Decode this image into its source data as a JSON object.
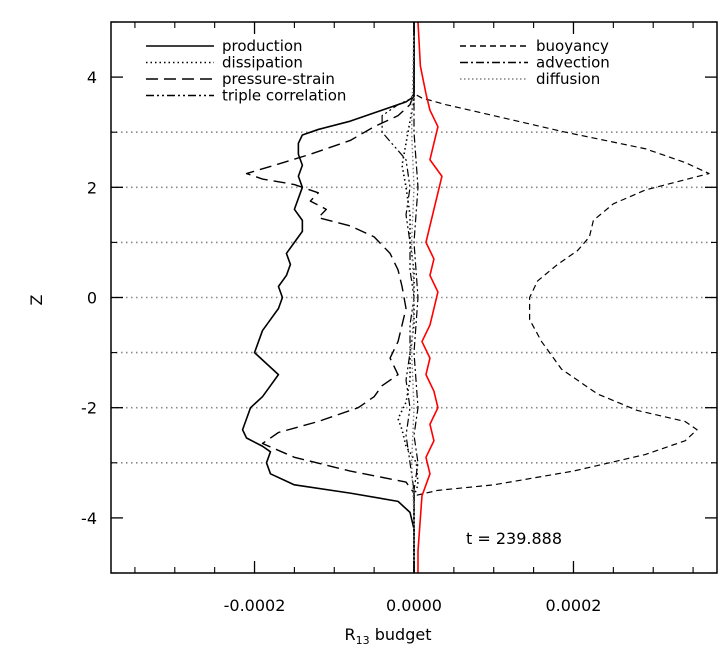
{
  "chart_data": {
    "type": "line",
    "annotation": "t = 239.888",
    "xlabel_main": "R",
    "xlabel_sub": "13",
    "xlabel_rest": " budget",
    "ylabel": "Z",
    "xlim": [
      -0.00038,
      0.00038
    ],
    "ylim": [
      -5,
      5
    ],
    "x_ticks": [
      {
        "value": -0.0002,
        "label": "-0.0002"
      },
      {
        "value": 0.0,
        "label": "0.0000"
      },
      {
        "value": 0.0002,
        "label": "0.0002"
      }
    ],
    "y_ticks": [
      {
        "value": -4,
        "label": "-4"
      },
      {
        "value": -2,
        "label": "-2"
      },
      {
        "value": 0,
        "label": "0"
      },
      {
        "value": 2,
        "label": "2"
      },
      {
        "value": 4,
        "label": "4"
      }
    ],
    "reference_lines_z": [
      -3,
      -2,
      -1,
      0,
      1,
      2,
      3
    ],
    "legend_left": [
      {
        "label": "production",
        "dash": "solid"
      },
      {
        "label": "dissipation",
        "dash": "dotted"
      },
      {
        "label": "pressure-strain",
        "dash": "longdash"
      },
      {
        "label": "triple correlation",
        "dash": "dashdotdot"
      }
    ],
    "legend_right": [
      {
        "label": "buoyancy",
        "dash": "dashed"
      },
      {
        "label": "advection",
        "dash": "dashdot"
      },
      {
        "label": "diffusion",
        "dash": "dotted-gray"
      }
    ],
    "series": [
      {
        "name": "production",
        "dash": "solid",
        "color": "#000000",
        "points": [
          [
            0.0,
            -5.0
          ],
          [
            0.0,
            -4.2
          ],
          [
            -5e-06,
            -3.9
          ],
          [
            -2e-05,
            -3.7
          ],
          [
            -8e-05,
            -3.55
          ],
          [
            -0.00015,
            -3.4
          ],
          [
            -0.00018,
            -3.2
          ],
          [
            -0.000185,
            -3.0
          ],
          [
            -0.00018,
            -2.8
          ],
          [
            -0.00019,
            -2.7
          ],
          [
            -0.00021,
            -2.55
          ],
          [
            -0.000215,
            -2.4
          ],
          [
            -0.00021,
            -2.2
          ],
          [
            -0.000205,
            -2.0
          ],
          [
            -0.00019,
            -1.8
          ],
          [
            -0.00018,
            -1.6
          ],
          [
            -0.00017,
            -1.4
          ],
          [
            -0.000185,
            -1.2
          ],
          [
            -0.0002,
            -1.0
          ],
          [
            -0.000195,
            -0.8
          ],
          [
            -0.00019,
            -0.6
          ],
          [
            -0.00018,
            -0.4
          ],
          [
            -0.00017,
            -0.2
          ],
          [
            -0.000165,
            0.0
          ],
          [
            -0.00017,
            0.2
          ],
          [
            -0.00016,
            0.4
          ],
          [
            -0.000155,
            0.6
          ],
          [
            -0.00016,
            0.8
          ],
          [
            -0.00015,
            1.0
          ],
          [
            -0.00014,
            1.2
          ],
          [
            -0.00014,
            1.4
          ],
          [
            -0.00015,
            1.6
          ],
          [
            -0.000145,
            1.8
          ],
          [
            -0.00014,
            2.0
          ],
          [
            -0.000145,
            2.2
          ],
          [
            -0.00014,
            2.4
          ],
          [
            -0.000145,
            2.6
          ],
          [
            -0.000145,
            2.8
          ],
          [
            -0.00014,
            2.95
          ],
          [
            -0.00012,
            3.05
          ],
          [
            -8e-05,
            3.2
          ],
          [
            -4e-05,
            3.4
          ],
          [
            -1e-05,
            3.55
          ],
          [
            0.0,
            3.65
          ],
          [
            0.0,
            5.0
          ]
        ]
      },
      {
        "name": "pressure-strain",
        "dash": "longdash",
        "color": "#000000",
        "points": [
          [
            0.0,
            -5.0
          ],
          [
            0.0,
            -4.0
          ],
          [
            0.0,
            -3.55
          ],
          [
            -1e-05,
            -3.35
          ],
          [
            -8e-05,
            -3.15
          ],
          [
            -0.00015,
            -2.9
          ],
          [
            -0.00019,
            -2.65
          ],
          [
            -0.00017,
            -2.45
          ],
          [
            -0.00012,
            -2.25
          ],
          [
            -7e-05,
            -2.0
          ],
          [
            -5e-05,
            -1.8
          ],
          [
            -4e-05,
            -1.6
          ],
          [
            -2e-05,
            -1.4
          ],
          [
            -3e-05,
            -1.1
          ],
          [
            -2e-05,
            -0.8
          ],
          [
            -1.5e-05,
            -0.5
          ],
          [
            -1e-05,
            -0.2
          ],
          [
            -1.5e-05,
            0.2
          ],
          [
            -2e-05,
            0.5
          ],
          [
            -3e-05,
            0.8
          ],
          [
            -5e-05,
            1.1
          ],
          [
            -8e-05,
            1.3
          ],
          [
            -0.00012,
            1.45
          ],
          [
            -0.00011,
            1.6
          ],
          [
            -0.00013,
            1.75
          ],
          [
            -0.00012,
            1.9
          ],
          [
            -0.00015,
            2.05
          ],
          [
            -0.00019,
            2.15
          ],
          [
            -0.00021,
            2.25
          ],
          [
            -0.000175,
            2.4
          ],
          [
            -0.00013,
            2.6
          ],
          [
            -8e-05,
            2.85
          ],
          [
            -5e-05,
            3.1
          ],
          [
            -2e-05,
            3.3
          ],
          [
            -5e-06,
            3.5
          ],
          [
            0.0,
            3.7
          ],
          [
            0.0,
            5.0
          ]
        ]
      },
      {
        "name": "triple correlation",
        "dash": "dashdotdot",
        "color": "#000000",
        "points": [
          [
            0.0,
            -5.0
          ],
          [
            0.0,
            -3.5
          ],
          [
            -5e-06,
            -3.0
          ],
          [
            -1e-05,
            -2.5
          ],
          [
            -5e-06,
            -2.0
          ],
          [
            -1e-05,
            -1.5
          ],
          [
            -5e-06,
            -1.0
          ],
          [
            -5e-06,
            -0.5
          ],
          [
            0.0,
            0.0
          ],
          [
            -5e-06,
            0.5
          ],
          [
            -5e-06,
            1.0
          ],
          [
            -1e-05,
            1.5
          ],
          [
            -5e-06,
            2.0
          ],
          [
            -1e-05,
            2.5
          ],
          [
            -4e-05,
            3.0
          ],
          [
            -4e-05,
            3.3
          ],
          [
            -2e-05,
            3.5
          ],
          [
            -5e-06,
            3.6
          ],
          [
            0.0,
            3.7
          ],
          [
            0.0,
            5.0
          ]
        ]
      },
      {
        "name": "dissipation",
        "dash": "dotted",
        "color": "#000000",
        "points": [
          [
            0.0,
            -5.0
          ],
          [
            0.0,
            -3.6
          ],
          [
            5e-06,
            -3.4
          ],
          [
            3e-06,
            -3.0
          ],
          [
            -1e-05,
            -2.7
          ],
          [
            -1.5e-05,
            -2.4
          ],
          [
            -2e-05,
            -2.2
          ],
          [
            -1e-05,
            -1.9
          ],
          [
            -5e-06,
            -1.5
          ],
          [
            -5e-06,
            -1.0
          ],
          [
            0.0,
            -0.5
          ],
          [
            0.0,
            0.0
          ],
          [
            0.0,
            0.5
          ],
          [
            -5e-06,
            1.0
          ],
          [
            -5e-06,
            1.5
          ],
          [
            -1e-05,
            2.0
          ],
          [
            -1.5e-05,
            2.4
          ],
          [
            -1e-05,
            2.8
          ],
          [
            -5e-06,
            3.2
          ],
          [
            0.0,
            3.6
          ],
          [
            0.0,
            5.0
          ]
        ]
      },
      {
        "name": "buoyancy",
        "dash": "dashed",
        "color": "#000000",
        "points": [
          [
            0.0,
            -5.0
          ],
          [
            0.0,
            -4.0
          ],
          [
            0.0,
            -3.6
          ],
          [
            3e-05,
            -3.5
          ],
          [
            0.0001,
            -3.4
          ],
          [
            0.0002,
            -3.15
          ],
          [
            0.00029,
            -2.85
          ],
          [
            0.00034,
            -2.6
          ],
          [
            0.000355,
            -2.4
          ],
          [
            0.00034,
            -2.25
          ],
          [
            0.00028,
            -2.05
          ],
          [
            0.00023,
            -1.75
          ],
          [
            0.000185,
            -1.3
          ],
          [
            0.00016,
            -0.8
          ],
          [
            0.000145,
            -0.4
          ],
          [
            0.000145,
            0.0
          ],
          [
            0.000155,
            0.3
          ],
          [
            0.00018,
            0.6
          ],
          [
            0.000205,
            0.85
          ],
          [
            0.00022,
            1.1
          ],
          [
            0.000225,
            1.4
          ],
          [
            0.00025,
            1.7
          ],
          [
            0.00029,
            1.95
          ],
          [
            0.00033,
            2.1
          ],
          [
            0.00037,
            2.25
          ],
          [
            0.00034,
            2.45
          ],
          [
            0.00029,
            2.7
          ],
          [
            0.00019,
            3.0
          ],
          [
            0.0001,
            3.3
          ],
          [
            4e-05,
            3.5
          ],
          [
            1e-05,
            3.62
          ],
          [
            0.0,
            3.7
          ],
          [
            0.0,
            5.0
          ]
        ]
      },
      {
        "name": "advection",
        "dash": "dashdot",
        "color": "#000000",
        "points": [
          [
            0.0,
            -5.0
          ],
          [
            0.0,
            -3.5
          ],
          [
            5e-06,
            -3.0
          ],
          [
            0.0,
            -2.5
          ],
          [
            5e-06,
            -2.0
          ],
          [
            0.0,
            -1.0
          ],
          [
            5e-06,
            0.0
          ],
          [
            0.0,
            1.0
          ],
          [
            5e-06,
            2.0
          ],
          [
            0.0,
            3.0
          ],
          [
            0.0,
            5.0
          ]
        ]
      },
      {
        "name": "diffusion",
        "dash": "dotted-gray",
        "color": "#808080",
        "points": [
          [
            0.0,
            -5.0
          ],
          [
            0.0,
            -4.0
          ],
          [
            -3e-06,
            -3.0
          ],
          [
            0.0,
            -2.0
          ],
          [
            -3e-06,
            -1.0
          ],
          [
            0.0,
            0.0
          ],
          [
            -3e-06,
            1.0
          ],
          [
            0.0,
            2.0
          ],
          [
            -3e-06,
            3.0
          ],
          [
            0.0,
            5.0
          ]
        ]
      },
      {
        "name": "sum",
        "dash": "solid",
        "color": "#ff0000",
        "points": [
          [
            5e-06,
            -5.0
          ],
          [
            5e-06,
            -4.6
          ],
          [
            8e-06,
            -4.0
          ],
          [
            1e-05,
            -3.6
          ],
          [
            2e-05,
            -3.2
          ],
          [
            1.5e-05,
            -2.9
          ],
          [
            2.5e-05,
            -2.6
          ],
          [
            2e-05,
            -2.3
          ],
          [
            3e-05,
            -2.0
          ],
          [
            2.5e-05,
            -1.7
          ],
          [
            1.5e-05,
            -1.4
          ],
          [
            2e-05,
            -1.1
          ],
          [
            1e-05,
            -0.8
          ],
          [
            2e-05,
            -0.5
          ],
          [
            2.5e-05,
            -0.2
          ],
          [
            3e-05,
            0.1
          ],
          [
            2e-05,
            0.4
          ],
          [
            2.5e-05,
            0.7
          ],
          [
            1.5e-05,
            1.0
          ],
          [
            2e-05,
            1.3
          ],
          [
            2.5e-05,
            1.6
          ],
          [
            3e-05,
            1.9
          ],
          [
            3.5e-05,
            2.2
          ],
          [
            2e-05,
            2.5
          ],
          [
            2.5e-05,
            2.8
          ],
          [
            3e-05,
            3.1
          ],
          [
            2e-05,
            3.4
          ],
          [
            1.5e-05,
            3.7
          ],
          [
            8e-06,
            4.2
          ],
          [
            5e-06,
            5.0
          ]
        ]
      }
    ]
  }
}
